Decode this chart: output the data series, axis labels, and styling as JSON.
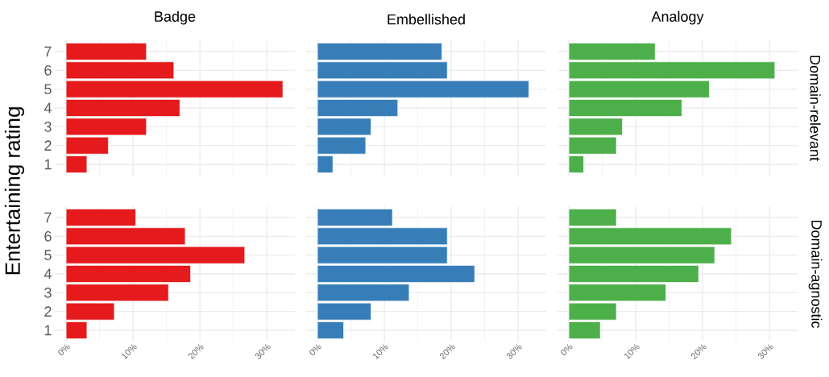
{
  "chart_data": [
    {
      "type": "bar",
      "orientation": "horizontal",
      "title": "Badge",
      "ylabel": "Entertaining rating",
      "categories": [
        "7",
        "6",
        "5",
        "4",
        "3",
        "2",
        "1"
      ],
      "values": [
        12.0,
        16.1,
        32.4,
        17.0,
        12.0,
        6.3,
        3.1
      ],
      "color": "#e41a1c",
      "xlim": [
        -1.7,
        34.2
      ],
      "xticks": [
        {
          "value": 0,
          "label": null
        },
        {
          "value": 5,
          "label": null
        },
        {
          "value": 10,
          "label": null
        },
        {
          "value": 15,
          "label": null
        },
        {
          "value": 20,
          "label": null
        },
        {
          "value": 25,
          "label": null
        },
        {
          "value": 30,
          "label": null
        }
      ],
      "grid": true,
      "tick_labels": "y"
    },
    {
      "type": "bar",
      "orientation": "horizontal",
      "title": "Embellished",
      "categories": [
        "7",
        "6",
        "5",
        "4",
        "3",
        "2",
        "1"
      ],
      "values": [
        18.6,
        19.4,
        31.6,
        12.0,
        8.0,
        7.2,
        2.3
      ],
      "color": "#377eb8",
      "xlim": [
        -1.7,
        34.2
      ],
      "xticks": [
        {
          "value": 0,
          "label": null
        },
        {
          "value": 5,
          "label": null
        },
        {
          "value": 10,
          "label": null
        },
        {
          "value": 15,
          "label": null
        },
        {
          "value": 20,
          "label": null
        },
        {
          "value": 25,
          "label": null
        },
        {
          "value": 30,
          "label": null
        }
      ],
      "grid": true,
      "tick_labels": false
    },
    {
      "type": "bar",
      "orientation": "horizontal",
      "title": "Analogy",
      "y2label": "Domain-relevant",
      "categories": [
        "7",
        "6",
        "5",
        "4",
        "3",
        "2",
        "1"
      ],
      "values": [
        12.9,
        30.8,
        21.0,
        16.9,
        8.0,
        7.1,
        2.2
      ],
      "color": "#4daf4a",
      "xlim": [
        -1.7,
        34.2
      ],
      "xticks": [
        {
          "value": 0,
          "label": null
        },
        {
          "value": 5,
          "label": null
        },
        {
          "value": 10,
          "label": null
        },
        {
          "value": 15,
          "label": null
        },
        {
          "value": 20,
          "label": null
        },
        {
          "value": 25,
          "label": null
        },
        {
          "value": 30,
          "label": null
        }
      ],
      "grid": true,
      "tick_labels": false
    },
    {
      "type": "bar",
      "orientation": "horizontal",
      "categories": [
        "7",
        "6",
        "5",
        "4",
        "3",
        "2",
        "1"
      ],
      "values": [
        10.4,
        17.8,
        26.7,
        18.6,
        15.3,
        7.2,
        3.1
      ],
      "color": "#e41a1c",
      "xlim": [
        -1.7,
        34.2
      ],
      "xticks": [
        {
          "value": 0,
          "label": "0%"
        },
        {
          "value": 5,
          "label": null
        },
        {
          "value": 10,
          "label": "10%"
        },
        {
          "value": 15,
          "label": null
        },
        {
          "value": 20,
          "label": "20%"
        },
        {
          "value": 25,
          "label": null
        },
        {
          "value": 30,
          "label": "30%"
        }
      ],
      "grid": true
    },
    {
      "type": "bar",
      "orientation": "horizontal",
      "categories": [
        "7",
        "6",
        "5",
        "4",
        "3",
        "2",
        "1"
      ],
      "values": [
        11.2,
        19.4,
        19.4,
        23.5,
        13.7,
        8.0,
        3.9
      ],
      "color": "#377eb8",
      "xlim": [
        -1.7,
        34.2
      ],
      "xticks": [
        {
          "value": 0,
          "label": "0%"
        },
        {
          "value": 5,
          "label": null
        },
        {
          "value": 10,
          "label": "10%"
        },
        {
          "value": 15,
          "label": null
        },
        {
          "value": 20,
          "label": "20%"
        },
        {
          "value": 25,
          "label": null
        },
        {
          "value": 30,
          "label": "30%"
        }
      ],
      "grid": true,
      "tick_labels": "x"
    },
    {
      "type": "bar",
      "orientation": "horizontal",
      "y2label": "Domain-agnostic",
      "categories": [
        "7",
        "6",
        "5",
        "4",
        "3",
        "2",
        "1"
      ],
      "values": [
        7.1,
        24.3,
        21.8,
        19.4,
        14.5,
        7.1,
        4.7
      ],
      "color": "#4daf4a",
      "xlim": [
        -1.7,
        34.2
      ],
      "xticks": [
        {
          "value": 0,
          "label": "0%"
        },
        {
          "value": 5,
          "label": null
        },
        {
          "value": 10,
          "label": "10%"
        },
        {
          "value": 15,
          "label": null
        },
        {
          "value": 20,
          "label": "20%"
        },
        {
          "value": 25,
          "label": null
        },
        {
          "value": 30,
          "label": "30%"
        }
      ],
      "grid": true,
      "tick_labels": "x"
    }
  ]
}
